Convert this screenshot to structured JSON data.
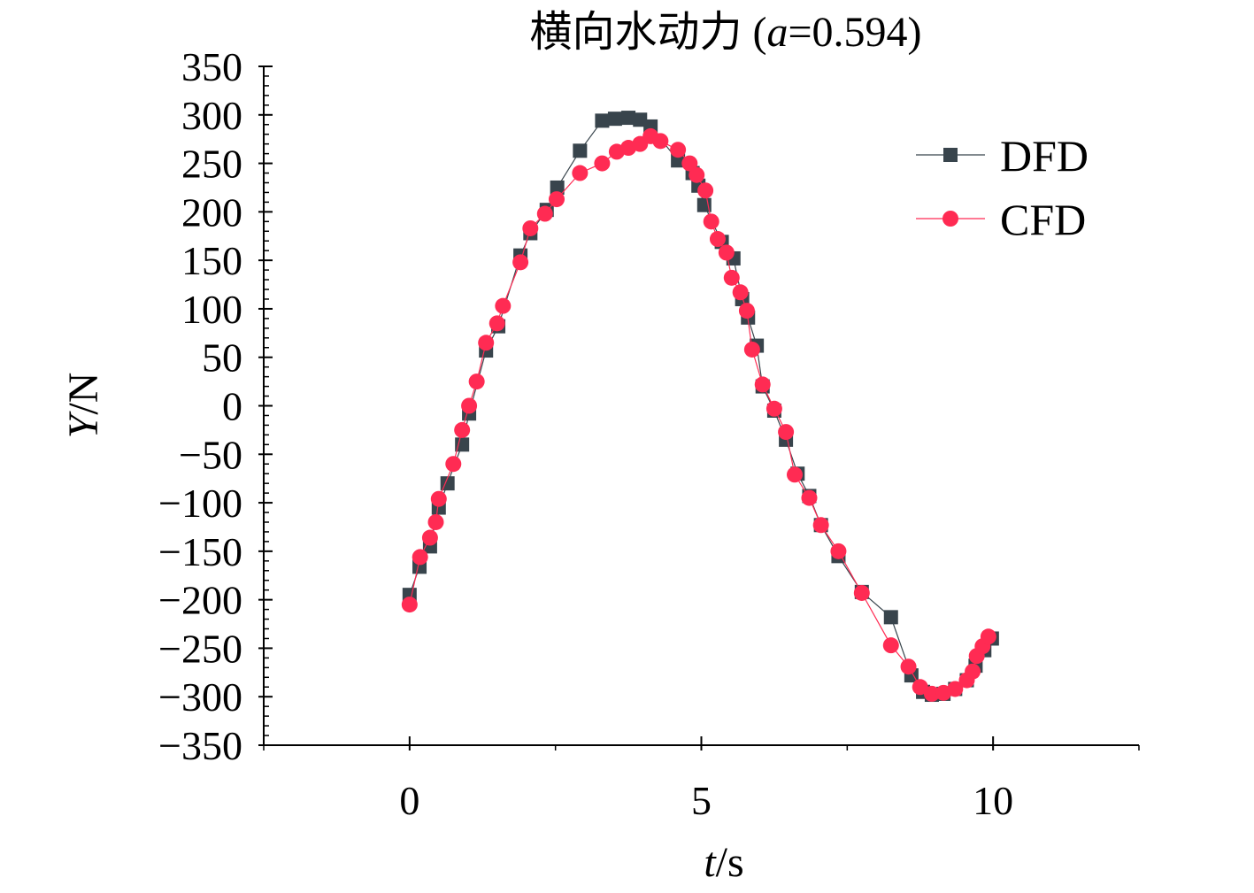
{
  "chart_data": {
    "type": "line",
    "title": {
      "prefix": "横向水动力 (",
      "var": "a",
      "suffix": "=0.594)"
    },
    "xlabel": {
      "var": "t",
      "unit": "/s"
    },
    "ylabel": {
      "var": "Y",
      "unit": "/N"
    },
    "xlim": [
      -2.5,
      12.5
    ],
    "ylim": [
      -350,
      350
    ],
    "xticks": [
      0,
      5,
      10
    ],
    "xtick_labels": [
      "0",
      "5",
      "10"
    ],
    "yticks": [
      -350,
      -300,
      -250,
      -200,
      -150,
      -100,
      -50,
      0,
      50,
      100,
      150,
      200,
      250,
      300,
      350
    ],
    "ytick_labels": [
      "−350",
      "−300",
      "−250",
      "−200",
      "−150",
      "−100",
      "−50",
      "0",
      "50",
      "100",
      "150",
      "200",
      "250",
      "300",
      "350"
    ],
    "grid": false,
    "legend_position": "top-right",
    "series": [
      {
        "name": "DFD",
        "color": "#38444c",
        "marker": "square",
        "x": [
          0,
          0.17,
          0.35,
          0.5,
          0.65,
          0.9,
          1.02,
          1.31,
          1.52,
          1.9,
          2.07,
          2.35,
          2.53,
          2.92,
          3.3,
          3.52,
          3.75,
          3.95,
          4.13,
          4.6,
          4.85,
          4.95,
          5.05,
          5.35,
          5.55,
          5.7,
          5.8,
          5.95,
          6.05,
          6.25,
          6.45,
          6.65,
          6.85,
          7.05,
          7.35,
          7.75,
          8.25,
          8.6,
          8.8,
          8.95,
          9.15,
          9.35,
          9.55,
          9.7,
          9.85,
          9.98
        ],
        "y": [
          -195,
          -166,
          -145,
          -105,
          -80,
          -40,
          -8,
          57,
          82,
          155,
          178,
          202,
          225,
          263,
          294,
          296,
          297,
          295,
          288,
          253,
          240,
          227,
          207,
          169,
          152,
          110,
          91,
          62,
          20,
          -5,
          -35,
          -70,
          -93,
          -123,
          -155,
          -192,
          -218,
          -278,
          -295,
          -298,
          -297,
          -292,
          -283,
          -268,
          -252,
          -240
        ],
        "marker_size": 16
      },
      {
        "name": "CFD",
        "color": "#ff2b53",
        "marker": "circle",
        "x": [
          0,
          0.18,
          0.35,
          0.45,
          0.5,
          0.75,
          0.9,
          1.02,
          1.15,
          1.31,
          1.5,
          1.6,
          1.9,
          2.07,
          2.32,
          2.52,
          2.92,
          3.3,
          3.55,
          3.75,
          3.95,
          4.13,
          4.3,
          4.6,
          4.8,
          4.92,
          5.07,
          5.17,
          5.28,
          5.43,
          5.52,
          5.67,
          5.78,
          5.87,
          6.05,
          6.25,
          6.45,
          6.6,
          6.85,
          7.05,
          7.35,
          7.75,
          8.25,
          8.55,
          8.75,
          8.95,
          9.15,
          9.35,
          9.55,
          9.65,
          9.72,
          9.82,
          9.92
        ],
        "y": [
          -205,
          -156,
          -136,
          -120,
          -96,
          -60,
          -25,
          0,
          25,
          65,
          85,
          103,
          148,
          183,
          198,
          213,
          240,
          250,
          262,
          266,
          270,
          278,
          273,
          264,
          250,
          238,
          222,
          190,
          172,
          158,
          132,
          117,
          98,
          58,
          22,
          -3,
          -27,
          -71,
          -95,
          -123,
          -150,
          -193,
          -247,
          -269,
          -290,
          -297,
          -296,
          -292,
          -283,
          -274,
          -258,
          -248,
          -238
        ]
      }
    ]
  }
}
